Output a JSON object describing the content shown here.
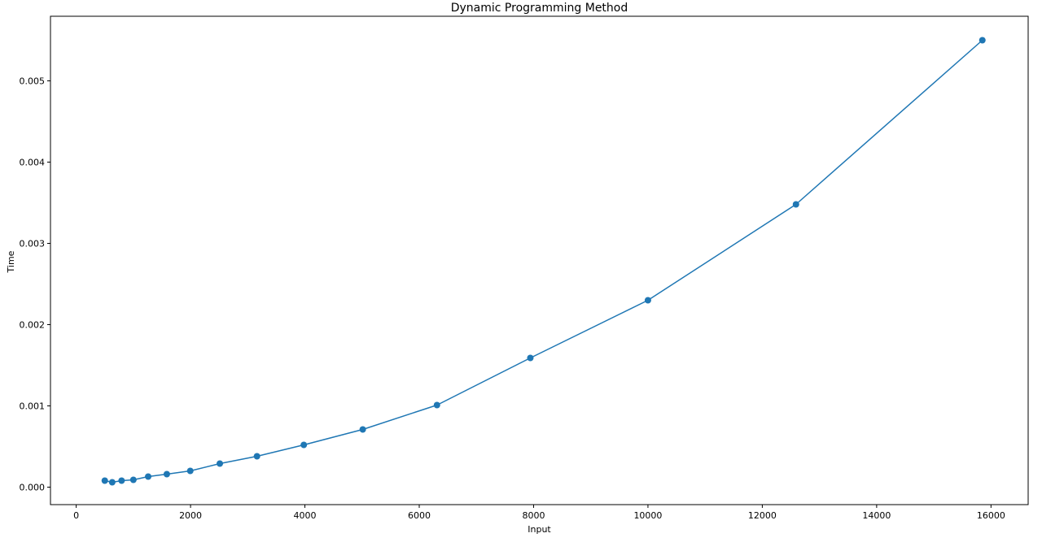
{
  "chart_data": {
    "type": "line",
    "title": "Dynamic Programming Method",
    "xlabel": "Input",
    "ylabel": "Time",
    "xlim": [
      -450,
      16650
    ],
    "ylim": [
      -0.000215,
      0.005795
    ],
    "xticks": [
      0,
      2000,
      4000,
      6000,
      8000,
      10000,
      12000,
      14000,
      16000
    ],
    "yticks": [
      0.0,
      0.001,
      0.002,
      0.003,
      0.004,
      0.005
    ],
    "xtick_labels": [
      "0",
      "2000",
      "4000",
      "6000",
      "8000",
      "10000",
      "12000",
      "14000",
      "16000"
    ],
    "ytick_labels": [
      "0.000",
      "0.001",
      "0.002",
      "0.003",
      "0.004",
      "0.005"
    ],
    "grid": false,
    "marker": "circle",
    "series": [
      {
        "color": "#1f77b4",
        "x": [
          500,
          630,
          794,
          1000,
          1259,
          1585,
          1995,
          2512,
          3162,
          3981,
          5012,
          6310,
          7943,
          10000,
          12589,
          15849
        ],
        "y": [
          8e-05,
          6e-05,
          8e-05,
          9e-05,
          0.00013,
          0.00016,
          0.0002,
          0.00029,
          0.00038,
          0.00052,
          0.00071,
          0.00101,
          0.00159,
          0.0023,
          0.00348,
          0.0055
        ]
      }
    ]
  }
}
